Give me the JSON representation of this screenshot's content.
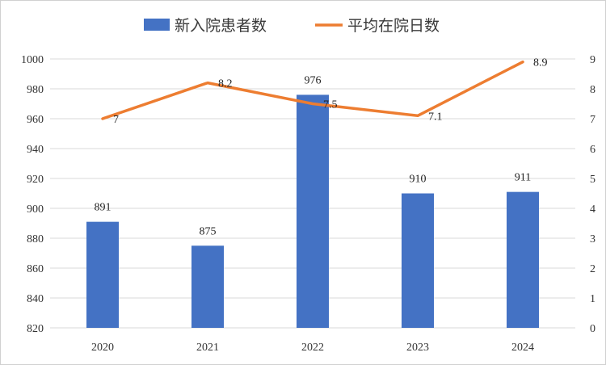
{
  "chart_data": {
    "type": "bar+line",
    "categories": [
      "2020",
      "2021",
      "2022",
      "2023",
      "2024"
    ],
    "series": [
      {
        "name": "新入院患者数",
        "type": "bar",
        "axis": "left",
        "values": [
          891,
          875,
          976,
          910,
          911
        ],
        "labels": [
          "891",
          "875",
          "976",
          "910",
          "911"
        ]
      },
      {
        "name": "平均在院日数",
        "type": "line",
        "axis": "right",
        "values": [
          7,
          8.2,
          7.5,
          7.1,
          8.9
        ],
        "labels": [
          "7",
          "8.2",
          "7.5",
          "7.1",
          "8.9"
        ]
      }
    ],
    "y_left": {
      "min": 820,
      "max": 1000,
      "step": 20,
      "ticks": [
        "820",
        "840",
        "860",
        "880",
        "900",
        "920",
        "940",
        "960",
        "980",
        "1000"
      ]
    },
    "y_right": {
      "min": 0,
      "max": 9,
      "step": 1,
      "ticks": [
        "0",
        "1",
        "2",
        "3",
        "4",
        "5",
        "6",
        "7",
        "8",
        "9"
      ]
    },
    "grid": true,
    "legend_position": "top",
    "colors": {
      "bar": "#4472C4",
      "line": "#ED7D31",
      "grid": "#D9D9D9",
      "border": "#D0D0D0"
    }
  }
}
